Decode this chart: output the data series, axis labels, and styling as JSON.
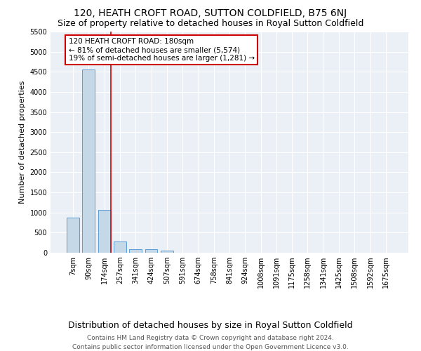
{
  "title": "120, HEATH CROFT ROAD, SUTTON COLDFIELD, B75 6NJ",
  "subtitle": "Size of property relative to detached houses in Royal Sutton Coldfield",
  "xlabel": "Distribution of detached houses by size in Royal Sutton Coldfield",
  "ylabel": "Number of detached properties",
  "categories": [
    "7sqm",
    "90sqm",
    "174sqm",
    "257sqm",
    "341sqm",
    "424sqm",
    "507sqm",
    "591sqm",
    "674sqm",
    "758sqm",
    "841sqm",
    "924sqm",
    "1008sqm",
    "1091sqm",
    "1175sqm",
    "1258sqm",
    "1341sqm",
    "1425sqm",
    "1508sqm",
    "1592sqm",
    "1675sqm"
  ],
  "values": [
    880,
    4550,
    1060,
    280,
    90,
    90,
    55,
    0,
    0,
    0,
    0,
    0,
    0,
    0,
    0,
    0,
    0,
    0,
    0,
    0,
    0
  ],
  "bar_color": "#c5d8e8",
  "bar_edge_color": "#5b9bd5",
  "vline_color": "#cc0000",
  "vline_x": 2.4,
  "annotation_text": "120 HEATH CROFT ROAD: 180sqm\n← 81% of detached houses are smaller (5,574)\n19% of semi-detached houses are larger (1,281) →",
  "annotation_box_color": "#cc0000",
  "ylim": [
    0,
    5500
  ],
  "yticks": [
    0,
    500,
    1000,
    1500,
    2000,
    2500,
    3000,
    3500,
    4000,
    4500,
    5000,
    5500
  ],
  "footnote1": "Contains HM Land Registry data © Crown copyright and database right 2024.",
  "footnote2": "Contains public sector information licensed under the Open Government Licence v3.0.",
  "plot_bg_color": "#eaf0f6",
  "title_fontsize": 10,
  "subtitle_fontsize": 9,
  "tick_fontsize": 7,
  "ylabel_fontsize": 8,
  "xlabel_fontsize": 9,
  "annotation_fontsize": 7.5,
  "footnote_fontsize": 6.5
}
